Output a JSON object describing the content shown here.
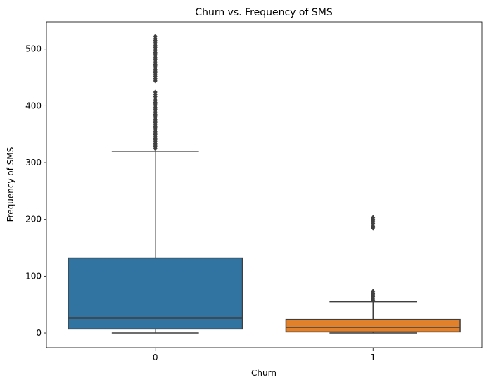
{
  "chart_data": {
    "type": "box",
    "title": "Churn vs. Frequency of SMS",
    "xlabel": "Churn",
    "ylabel": "Frequency of SMS",
    "ylim": [
      -26,
      548
    ],
    "yticks": [
      0,
      100,
      200,
      300,
      400,
      500
    ],
    "grid": false,
    "categories": [
      "0",
      "1"
    ],
    "boxes": [
      {
        "category": "0",
        "color": "#3274a1",
        "whisker_low": 0,
        "q1": 7,
        "median": 26,
        "q3": 132,
        "whisker_high": 320,
        "outliers": [
          325,
          328,
          331,
          334,
          337,
          340,
          343,
          346,
          349,
          352,
          355,
          358,
          361,
          364,
          367,
          370,
          373,
          376,
          379,
          382,
          385,
          388,
          391,
          394,
          397,
          400,
          403,
          406,
          409,
          412,
          416,
          420,
          424,
          444,
          448,
          452,
          455,
          458,
          461,
          464,
          467,
          470,
          473,
          476,
          479,
          482,
          485,
          488,
          491,
          494,
          497,
          500,
          503,
          506,
          509,
          512,
          515,
          518,
          522
        ]
      },
      {
        "category": "1",
        "color": "#e1812c",
        "whisker_low": 0,
        "q1": 2,
        "median": 10,
        "q3": 24,
        "whisker_high": 55,
        "outliers": [
          58,
          61,
          64,
          67,
          70,
          73,
          185,
          188,
          193,
          197,
          200,
          203
        ]
      }
    ]
  }
}
